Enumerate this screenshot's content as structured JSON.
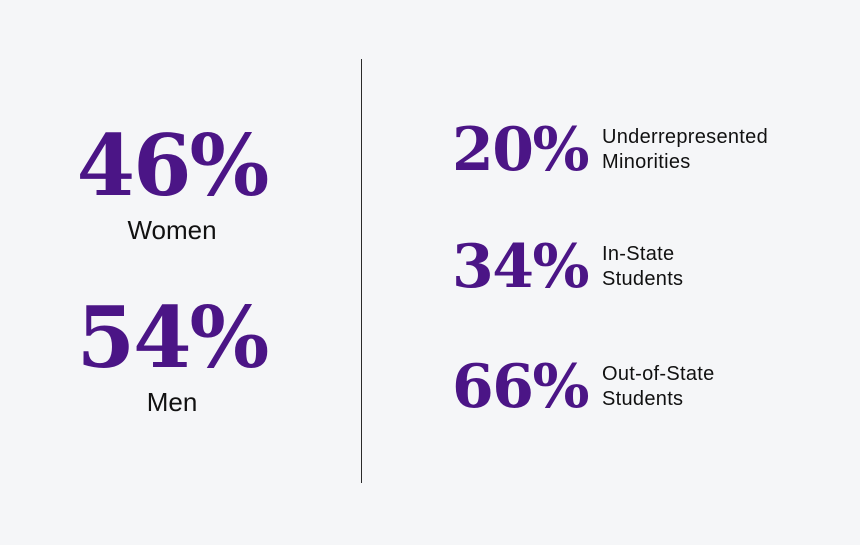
{
  "gender": [
    {
      "percent": "46%",
      "label": "Women"
    },
    {
      "percent": "54%",
      "label": "Men"
    }
  ],
  "demographics": [
    {
      "percent": "20%",
      "label_line1": "Underrepresented",
      "label_line2": "Minorities"
    },
    {
      "percent": "34%",
      "label_line1": "In-State",
      "label_line2": "Students"
    },
    {
      "percent": "66%",
      "label_line1": "Out-of-State",
      "label_line2": "Students"
    }
  ],
  "colors": {
    "accent": "#4b1586",
    "text": "#111111",
    "background": "#f5f6f8",
    "divider": "#2a2a2a"
  }
}
